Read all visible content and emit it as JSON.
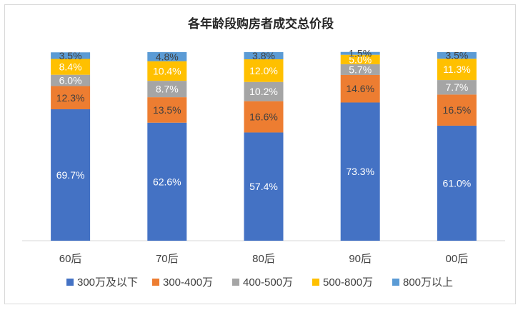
{
  "chart_data": {
    "type": "bar",
    "stacked": true,
    "title": "各年龄段购房者成交总价段",
    "xlabel": "",
    "ylabel": "",
    "ylim": [
      0,
      100
    ],
    "grid": false,
    "legend_position": "bottom",
    "categories": [
      "60后",
      "70后",
      "80后",
      "90后",
      "00后"
    ],
    "series": [
      {
        "name": "300万及以下",
        "color": "#4472C4",
        "values": [
          69.7,
          62.6,
          57.4,
          73.3,
          61.0
        ],
        "labels": [
          "69.7%",
          "62.6%",
          "57.4%",
          "73.3%",
          "61.0%"
        ],
        "label_color": "#ffffff"
      },
      {
        "name": "300-400万",
        "color": "#ED7D31",
        "values": [
          12.3,
          13.5,
          16.6,
          14.6,
          16.5
        ],
        "labels": [
          "12.3%",
          "13.5%",
          "16.6%",
          "14.6%",
          "16.5%"
        ],
        "label_color": "#404040"
      },
      {
        "name": "400-500万",
        "color": "#A5A5A5",
        "values": [
          6.0,
          8.7,
          10.2,
          5.7,
          7.7
        ],
        "labels": [
          "6.0%",
          "8.7%",
          "10.2%",
          "5.7%",
          "7.7%"
        ],
        "label_color": "#ffffff"
      },
      {
        "name": "500-800万",
        "color": "#FFC000",
        "values": [
          8.4,
          10.4,
          12.0,
          5.0,
          11.3
        ],
        "labels": [
          "8.4%",
          "10.4%",
          "12.0%",
          "5.0%",
          "11.3%"
        ],
        "label_color": "#ffffff"
      },
      {
        "name": "800万以上",
        "color": "#5B9BD5",
        "values": [
          3.5,
          4.8,
          3.8,
          1.5,
          3.5
        ],
        "labels": [
          "3.5%",
          "4.8%",
          "3.8%",
          "1.5%",
          "3.5%"
        ],
        "label_color": "#404040"
      }
    ]
  }
}
